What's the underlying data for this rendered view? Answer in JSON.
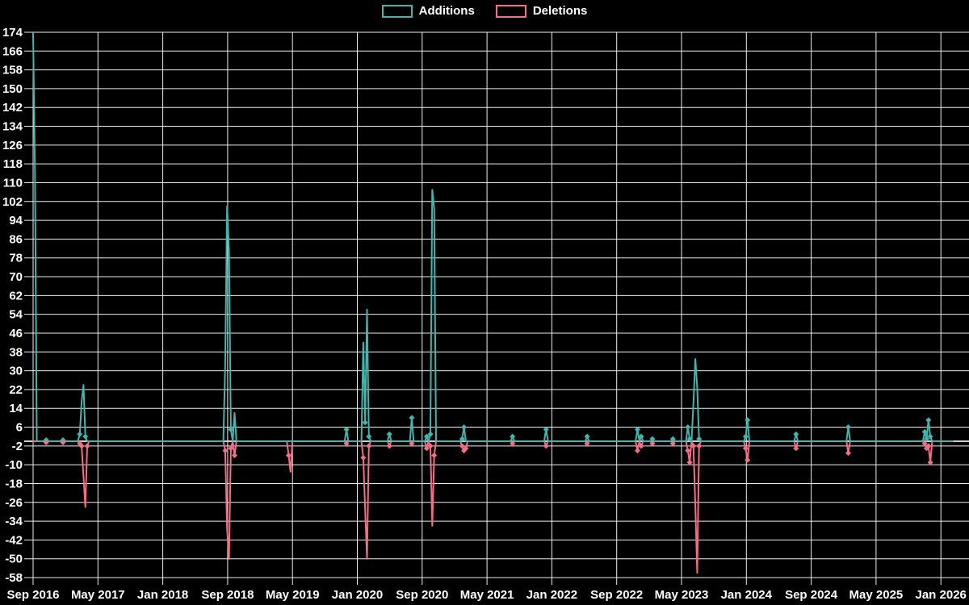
{
  "window": {
    "background": "#000000"
  },
  "legend": {
    "items": [
      {
        "label": "Additions",
        "color": "#3db8ae"
      },
      {
        "label": "Deletions",
        "color": "#f56e87"
      }
    ]
  },
  "chart_data": {
    "type": "line",
    "title": "",
    "grid": true,
    "legend_position": "top-center",
    "colors": {
      "background": "#000000",
      "grid": "#ededed",
      "zero_line": "#cfcfcf",
      "text": "#ffffff",
      "additions": "#3db8ae",
      "deletions": "#f56e87"
    },
    "x_axis": {
      "tick_labels": [
        "Sep 2016",
        "May 2017",
        "Jan 2018",
        "Sep 2018",
        "May 2019",
        "Jan 2020",
        "Sep 2020",
        "May 2021",
        "Jan 2022",
        "Sep 2022",
        "May 2023",
        "Jan 2024",
        "Sep 2024",
        "May 2025",
        "Jan 2026"
      ],
      "start": "Sep 2016",
      "end": "Jan 2026",
      "unit": "weeks"
    },
    "y_axis": {
      "ticks": [
        174,
        166,
        158,
        150,
        142,
        134,
        126,
        118,
        110,
        102,
        94,
        86,
        78,
        70,
        62,
        54,
        46,
        38,
        30,
        22,
        14,
        6,
        -2,
        -10,
        -18,
        -26,
        -34,
        -42,
        -50,
        -58
      ],
      "min": -58,
      "max": 174,
      "step": 8
    },
    "total_weeks": 494,
    "baseline_value": 0,
    "series": [
      {
        "name": "Additions",
        "color_key": "additions",
        "sparse_points": [
          [
            0,
            174
          ],
          [
            1,
            114
          ],
          [
            7,
            0.5
          ],
          [
            16,
            0.5
          ],
          [
            25,
            3
          ],
          [
            26,
            17
          ],
          [
            27,
            24
          ],
          [
            28,
            2
          ],
          [
            103,
            33
          ],
          [
            104,
            100
          ],
          [
            105,
            81
          ],
          [
            106,
            5
          ],
          [
            108,
            12
          ],
          [
            168,
            5
          ],
          [
            177,
            42
          ],
          [
            178,
            8
          ],
          [
            179,
            56
          ],
          [
            180,
            2
          ],
          [
            191,
            3
          ],
          [
            203,
            10
          ],
          [
            211,
            2
          ],
          [
            213,
            3
          ],
          [
            214,
            107
          ],
          [
            215,
            99
          ],
          [
            230,
            1
          ],
          [
            231,
            6
          ],
          [
            257,
            2
          ],
          [
            275,
            5
          ],
          [
            297,
            2
          ],
          [
            324,
            5
          ],
          [
            326,
            2
          ],
          [
            332,
            1
          ],
          [
            343,
            1
          ],
          [
            351,
            6
          ],
          [
            352,
            1
          ],
          [
            354,
            16
          ],
          [
            355,
            35
          ],
          [
            356,
            23
          ],
          [
            357,
            1
          ],
          [
            382,
            2
          ],
          [
            383,
            9
          ],
          [
            409,
            3
          ],
          [
            437,
            6
          ],
          [
            478,
            4
          ],
          [
            479,
            1
          ],
          [
            480,
            9
          ],
          [
            481,
            2
          ]
        ]
      },
      {
        "name": "Deletions",
        "color_key": "deletions",
        "sparse_points": [
          [
            7,
            -0.5
          ],
          [
            16,
            -0.5
          ],
          [
            25,
            -1
          ],
          [
            26,
            -2
          ],
          [
            27,
            -15
          ],
          [
            28,
            -28
          ],
          [
            29,
            -2
          ],
          [
            103,
            -4
          ],
          [
            104,
            -37
          ],
          [
            105,
            -50
          ],
          [
            106,
            -3
          ],
          [
            108,
            -6
          ],
          [
            137,
            -6
          ],
          [
            138,
            -13
          ],
          [
            168,
            -1
          ],
          [
            177,
            -7
          ],
          [
            178,
            -29
          ],
          [
            179,
            -50
          ],
          [
            180,
            -2
          ],
          [
            191,
            -2
          ],
          [
            203,
            -1
          ],
          [
            211,
            -3
          ],
          [
            213,
            -2
          ],
          [
            214,
            -36
          ],
          [
            215,
            -6
          ],
          [
            230,
            -2
          ],
          [
            231,
            -4
          ],
          [
            232,
            -3
          ],
          [
            257,
            -1
          ],
          [
            275,
            -2
          ],
          [
            297,
            -1
          ],
          [
            324,
            -4
          ],
          [
            326,
            -2
          ],
          [
            332,
            -1
          ],
          [
            343,
            -1
          ],
          [
            351,
            -4
          ],
          [
            352,
            -9
          ],
          [
            354,
            -2
          ],
          [
            355,
            -27
          ],
          [
            356,
            -56
          ],
          [
            357,
            -2
          ],
          [
            382,
            -3
          ],
          [
            383,
            -8
          ],
          [
            409,
            -3
          ],
          [
            437,
            -5
          ],
          [
            478,
            -1
          ],
          [
            479,
            -3
          ],
          [
            480,
            -2
          ],
          [
            481,
            -9
          ]
        ]
      }
    ]
  }
}
